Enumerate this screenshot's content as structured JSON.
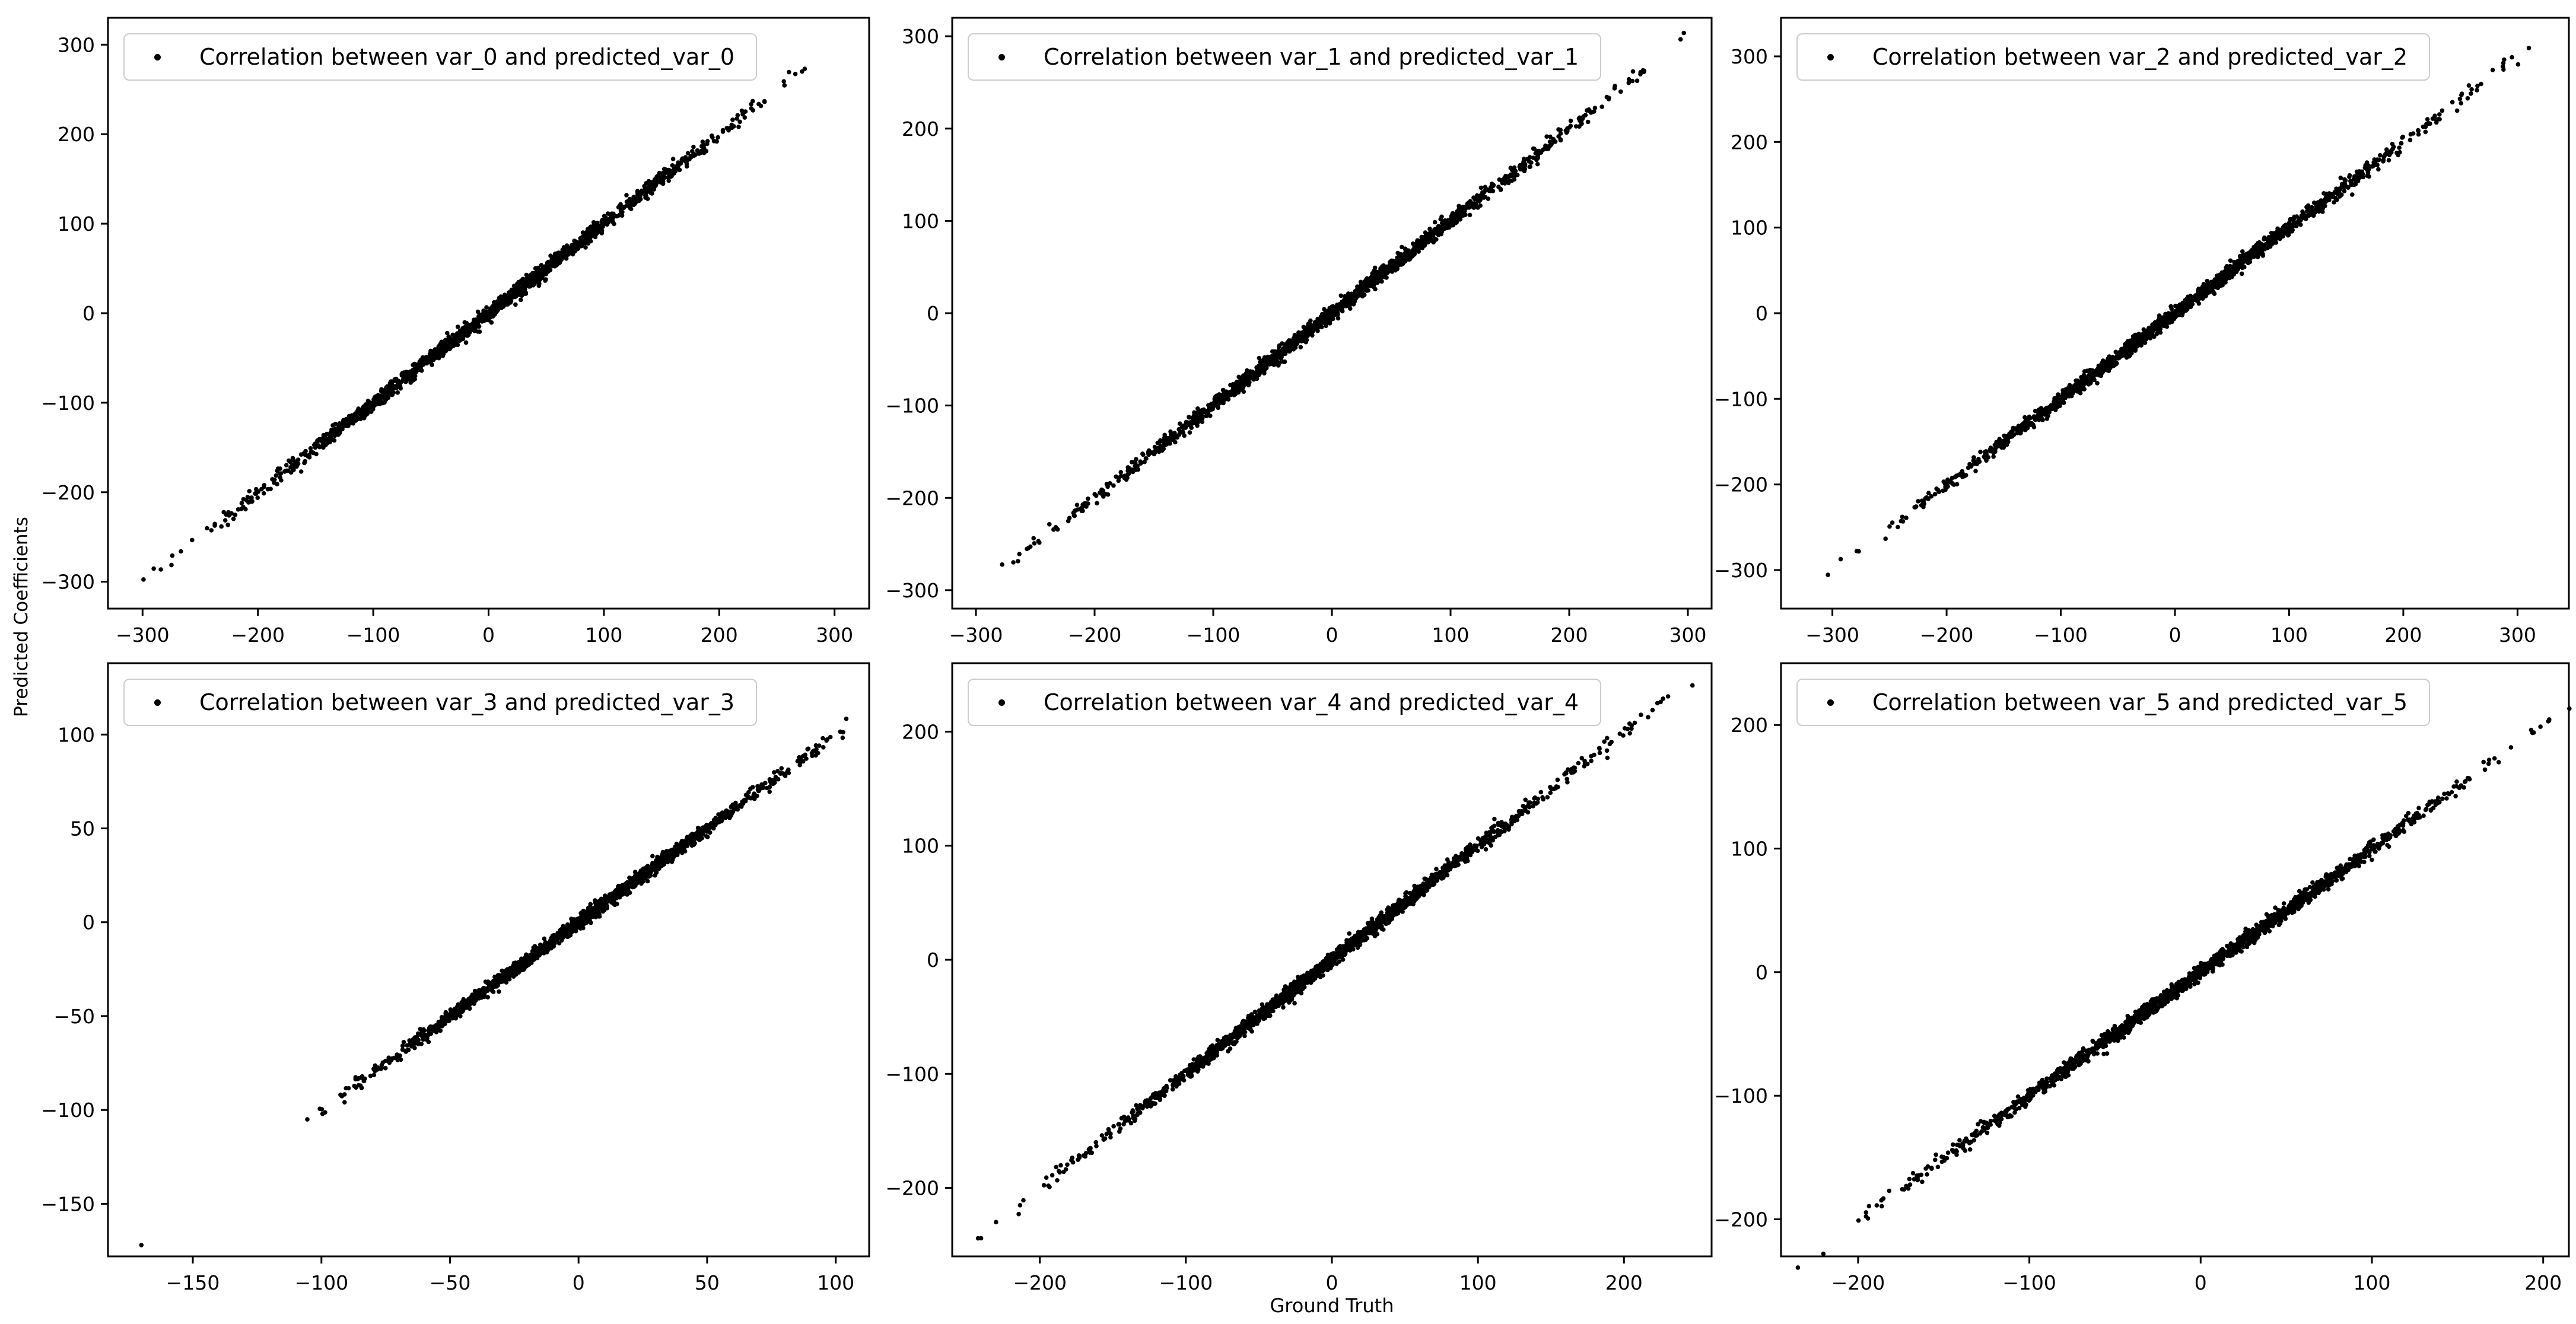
{
  "figure": {
    "xlabel": "Ground Truth",
    "ylabel": "Predicted Coefficients",
    "background_color": "#ffffff",
    "point_color": "#000000",
    "spine_color": "#000000",
    "tick_color": "#000000",
    "text_color": "#000000",
    "legend_bg": "#ffffff",
    "legend_border_color": "#cccccc",
    "grid": "off",
    "layout": "2 rows x 3 columns of scatter subplots"
  },
  "chart_data": [
    {
      "type": "scatter",
      "legend_label": "Correlation between var_0 and predicted_var_0",
      "legend_position": "upper left",
      "xlim": [
        -330,
        330
      ],
      "ylim": [
        -330,
        330
      ],
      "x_ticks": [
        -300,
        -200,
        -100,
        0,
        100,
        200,
        300
      ],
      "y_ticks": [
        -300,
        -200,
        -100,
        0,
        100,
        200,
        300
      ],
      "relation": "predicted_var_0 ≈ var_0 (points on identity line y=x with small noise)",
      "n_points": 1600,
      "x_sd": 100,
      "x_clip": 310,
      "noise_sd": 4,
      "seed": 11,
      "outliers": []
    },
    {
      "type": "scatter",
      "legend_label": "Correlation between var_1 and predicted_var_1",
      "legend_position": "upper left",
      "xlim": [
        -320,
        320
      ],
      "ylim": [
        -320,
        320
      ],
      "x_ticks": [
        -300,
        -200,
        -100,
        0,
        100,
        200,
        300
      ],
      "y_ticks": [
        -300,
        -200,
        -100,
        0,
        100,
        200,
        300
      ],
      "relation": "predicted_var_1 ≈ var_1 (points on identity line y=x with small noise)",
      "n_points": 1600,
      "x_sd": 100,
      "x_clip": 300,
      "noise_sd": 4,
      "seed": 22,
      "outliers": []
    },
    {
      "type": "scatter",
      "legend_label": "Correlation between var_2 and predicted_var_2",
      "legend_position": "upper left",
      "xlim": [
        -345,
        345
      ],
      "ylim": [
        -345,
        345
      ],
      "x_ticks": [
        -300,
        -200,
        -100,
        0,
        100,
        200,
        300
      ],
      "y_ticks": [
        -300,
        -200,
        -100,
        0,
        100,
        200,
        300
      ],
      "relation": "predicted_var_2 ≈ var_2 (points on identity line y=x with small noise)",
      "n_points": 1600,
      "x_sd": 105,
      "x_clip": 327,
      "noise_sd": 4.2,
      "seed": 33,
      "outliers": []
    },
    {
      "type": "scatter",
      "legend_label": "Correlation between var_3 and predicted_var_3",
      "legend_position": "upper left",
      "xlim": [
        -183,
        113
      ],
      "ylim": [
        -178,
        138
      ],
      "x_ticks": [
        -150,
        -100,
        -50,
        0,
        50,
        100
      ],
      "y_ticks": [
        -150,
        -100,
        -50,
        0,
        50,
        100
      ],
      "relation": "predicted_var_3 ≈ var_3 (points on identity line y=x with small noise, one low outlier)",
      "n_points": 1600,
      "x_sd": 40,
      "x_clip": 106,
      "noise_sd": 1.8,
      "seed": 44,
      "outliers": [
        [
          -170,
          -172
        ]
      ]
    },
    {
      "type": "scatter",
      "legend_label": "Correlation between var_4 and predicted_var_4",
      "legend_position": "upper left",
      "xlim": [
        -260,
        260
      ],
      "ylim": [
        -260,
        260
      ],
      "x_ticks": [
        -200,
        -100,
        0,
        100,
        200
      ],
      "y_ticks": [
        -200,
        -100,
        0,
        100,
        200
      ],
      "relation": "predicted_var_4 ≈ var_4 (points on identity line y=x with small noise)",
      "n_points": 1600,
      "x_sd": 80,
      "x_clip": 247,
      "noise_sd": 3.2,
      "seed": 55,
      "outliers": []
    },
    {
      "type": "scatter",
      "legend_label": "Correlation between var_5 and predicted_var_5",
      "legend_position": "upper left",
      "xlim": [
        -245,
        215
      ],
      "ylim": [
        -230,
        250
      ],
      "x_ticks": [
        -200,
        -100,
        0,
        100,
        200
      ],
      "y_ticks": [
        -200,
        -100,
        0,
        100,
        200
      ],
      "relation": "predicted_var_5 ≈ var_5 (points on identity line y=x with small noise)",
      "n_points": 1600,
      "x_sd": 75,
      "x_clip": 237,
      "noise_sd": 3,
      "seed": 66,
      "outliers": []
    }
  ]
}
